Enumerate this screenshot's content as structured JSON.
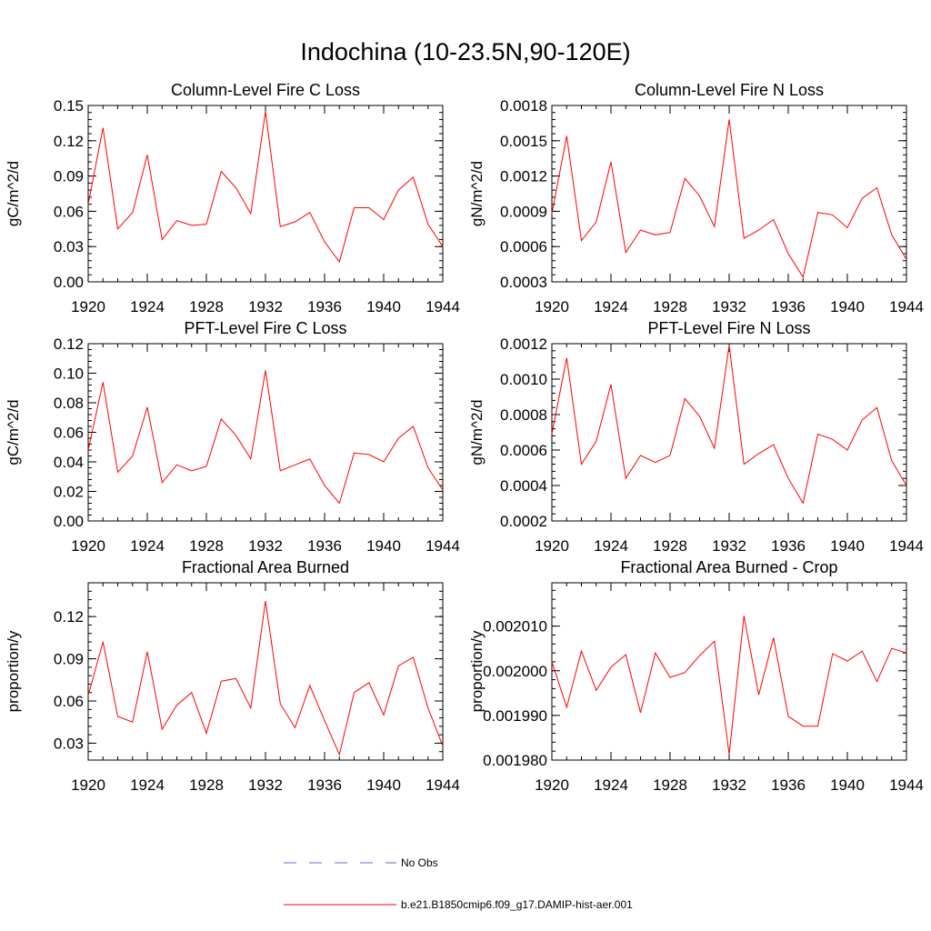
{
  "figure_title": "Indochina (10-23.5N,90-120E)",
  "legend": [
    {
      "label": "No Obs",
      "color": "#5a6fd0",
      "dashed": true
    },
    {
      "label": "b.e21.B1850cmip6.f09_g17.DAMIP-hist-aer.001",
      "color": "#ff0000",
      "dashed": false
    }
  ],
  "chart_data": [
    {
      "type": "line",
      "title": "Column-Level Fire C Loss",
      "ylabel": "gC/m^2/d",
      "xlim": [
        1920,
        1944
      ],
      "ylim": [
        0,
        0.15
      ],
      "xticks": [
        1920,
        1924,
        1928,
        1932,
        1936,
        1940,
        1944
      ],
      "xtick_labels": [
        "1920",
        "1924",
        "1928",
        "1932",
        "1936",
        "1940",
        "1944"
      ],
      "yticks": [
        0,
        0.03,
        0.06,
        0.09,
        0.12,
        0.15
      ],
      "ytick_labels": [
        "0.00",
        "0.03",
        "0.06",
        "0.09",
        "0.12",
        "0.15"
      ],
      "series": [
        {
          "color": "#ff0000",
          "x": [
            1920,
            1921,
            1922,
            1923,
            1924,
            1925,
            1926,
            1927,
            1928,
            1929,
            1930,
            1931,
            1932,
            1933,
            1934,
            1935,
            1936,
            1937,
            1938,
            1939,
            1940,
            1941,
            1942,
            1943,
            1944
          ],
          "values": [
            0.066,
            0.131,
            0.045,
            0.059,
            0.108,
            0.036,
            0.052,
            0.048,
            0.049,
            0.094,
            0.08,
            0.058,
            0.145,
            0.047,
            0.051,
            0.059,
            0.034,
            0.017,
            0.063,
            0.063,
            0.053,
            0.078,
            0.089,
            0.049,
            0.03
          ]
        }
      ]
    },
    {
      "type": "line",
      "title": "Column-Level Fire N Loss",
      "ylabel": "gN/m^2/d",
      "xlim": [
        1920,
        1944
      ],
      "ylim": [
        0.0003,
        0.0018
      ],
      "xticks": [
        1920,
        1924,
        1928,
        1932,
        1936,
        1940,
        1944
      ],
      "xtick_labels": [
        "1920",
        "1924",
        "1928",
        "1932",
        "1936",
        "1940",
        "1944"
      ],
      "yticks": [
        0.0003,
        0.0006,
        0.0009,
        0.0012,
        0.0015,
        0.0018
      ],
      "ytick_labels": [
        "0.0003",
        "0.0006",
        "0.0009",
        "0.0012",
        "0.0015",
        "0.0018"
      ],
      "series": [
        {
          "color": "#ff0000",
          "x": [
            1920,
            1921,
            1922,
            1923,
            1924,
            1925,
            1926,
            1927,
            1928,
            1929,
            1930,
            1931,
            1932,
            1933,
            1934,
            1935,
            1936,
            1937,
            1938,
            1939,
            1940,
            1941,
            1942,
            1943,
            1944
          ],
          "values": [
            0.00088,
            0.00154,
            0.00065,
            0.00081,
            0.00132,
            0.00055,
            0.00074,
            0.0007,
            0.00072,
            0.00118,
            0.00103,
            0.00077,
            0.00168,
            0.00067,
            0.00074,
            0.00083,
            0.00054,
            0.00034,
            0.00089,
            0.00087,
            0.00076,
            0.00101,
            0.0011,
            0.0007,
            0.00049
          ]
        }
      ]
    },
    {
      "type": "line",
      "title": "PFT-Level Fire C Loss",
      "ylabel": "gC/m^2/d",
      "xlim": [
        1920,
        1944
      ],
      "ylim": [
        0,
        0.12
      ],
      "xticks": [
        1920,
        1924,
        1928,
        1932,
        1936,
        1940,
        1944
      ],
      "xtick_labels": [
        "1920",
        "1924",
        "1928",
        "1932",
        "1936",
        "1940",
        "1944"
      ],
      "yticks": [
        0,
        0.02,
        0.04,
        0.06,
        0.08,
        0.1,
        0.12
      ],
      "ytick_labels": [
        "0.00",
        "0.02",
        "0.04",
        "0.06",
        "0.08",
        "0.10",
        "0.12"
      ],
      "series": [
        {
          "color": "#ff0000",
          "x": [
            1920,
            1921,
            1922,
            1923,
            1924,
            1925,
            1926,
            1927,
            1928,
            1929,
            1930,
            1931,
            1932,
            1933,
            1934,
            1935,
            1936,
            1937,
            1938,
            1939,
            1940,
            1941,
            1942,
            1943,
            1944
          ],
          "values": [
            0.048,
            0.094,
            0.033,
            0.044,
            0.077,
            0.026,
            0.038,
            0.034,
            0.037,
            0.069,
            0.058,
            0.042,
            0.102,
            0.034,
            0.038,
            0.042,
            0.024,
            0.012,
            0.046,
            0.045,
            0.04,
            0.056,
            0.064,
            0.036,
            0.021
          ]
        }
      ]
    },
    {
      "type": "line",
      "title": "PFT-Level Fire N Loss",
      "ylabel": "gN/m^2/d",
      "xlim": [
        1920,
        1944
      ],
      "ylim": [
        0.0002,
        0.0012
      ],
      "xticks": [
        1920,
        1924,
        1928,
        1932,
        1936,
        1940,
        1944
      ],
      "xtick_labels": [
        "1920",
        "1924",
        "1928",
        "1932",
        "1936",
        "1940",
        "1944"
      ],
      "yticks": [
        0.0002,
        0.0004,
        0.0006,
        0.0008,
        0.001,
        0.0012
      ],
      "ytick_labels": [
        "0.0002",
        "0.0004",
        "0.0006",
        "0.0008",
        "0.0010",
        "0.0012"
      ],
      "series": [
        {
          "color": "#ff0000",
          "x": [
            1920,
            1921,
            1922,
            1923,
            1924,
            1925,
            1926,
            1927,
            1928,
            1929,
            1930,
            1931,
            1932,
            1933,
            1934,
            1935,
            1936,
            1937,
            1938,
            1939,
            1940,
            1941,
            1942,
            1943,
            1944
          ],
          "values": [
            0.00069,
            0.00112,
            0.00052,
            0.00065,
            0.00097,
            0.00044,
            0.00057,
            0.00053,
            0.00057,
            0.00089,
            0.00079,
            0.00061,
            0.00119,
            0.00052,
            0.00058,
            0.00063,
            0.00044,
            0.0003,
            0.00069,
            0.00066,
            0.0006,
            0.00077,
            0.00084,
            0.00054,
            0.0004
          ]
        }
      ]
    },
    {
      "type": "line",
      "title": "Fractional Area Burned",
      "ylabel": "proportion/y",
      "xlim": [
        1920,
        1944
      ],
      "ylim": [
        0.018,
        0.144
      ],
      "xticks": [
        1920,
        1924,
        1928,
        1932,
        1936,
        1940,
        1944
      ],
      "xtick_labels": [
        "1920",
        "1924",
        "1928",
        "1932",
        "1936",
        "1940",
        "1944"
      ],
      "yticks": [
        0.03,
        0.06,
        0.09,
        0.12
      ],
      "ytick_labels": [
        "0.03",
        "0.06",
        "0.09",
        "0.12"
      ],
      "series": [
        {
          "color": "#ff0000",
          "x": [
            1920,
            1921,
            1922,
            1923,
            1924,
            1925,
            1926,
            1927,
            1928,
            1929,
            1930,
            1931,
            1932,
            1933,
            1934,
            1935,
            1936,
            1937,
            1938,
            1939,
            1940,
            1941,
            1942,
            1943,
            1944
          ],
          "values": [
            0.064,
            0.102,
            0.049,
            0.045,
            0.095,
            0.04,
            0.057,
            0.066,
            0.037,
            0.074,
            0.076,
            0.055,
            0.131,
            0.058,
            0.041,
            0.071,
            0.046,
            0.022,
            0.066,
            0.073,
            0.05,
            0.085,
            0.091,
            0.055,
            0.028
          ]
        }
      ]
    },
    {
      "type": "line",
      "title": "Fractional Area Burned - Crop",
      "ylabel": "proportion/y",
      "xlim": [
        1920,
        1944
      ],
      "ylim": [
        0.00198,
        0.0020197
      ],
      "xticks": [
        1920,
        1924,
        1928,
        1932,
        1936,
        1940,
        1944
      ],
      "xtick_labels": [
        "1920",
        "1924",
        "1928",
        "1932",
        "1936",
        "1940",
        "1944"
      ],
      "yticks": [
        0.00198,
        0.00199,
        0.002,
        0.00201
      ],
      "ytick_labels": [
        "0.001980",
        "0.001990",
        "0.002000",
        "0.002010"
      ],
      "series": [
        {
          "color": "#ff0000",
          "x": [
            1920,
            1921,
            1922,
            1923,
            1924,
            1925,
            1926,
            1927,
            1928,
            1929,
            1930,
            1931,
            1932,
            1933,
            1934,
            1935,
            1936,
            1937,
            1938,
            1939,
            1940,
            1941,
            1942,
            1943,
            1944
          ],
          "values": [
            0.002002,
            0.0019918,
            0.0020044,
            0.0019956,
            0.0020008,
            0.0020036,
            0.0019906,
            0.002004,
            0.0019985,
            0.0019996,
            0.0020034,
            0.0020066,
            0.0019813,
            0.0020123,
            0.0019946,
            0.0020074,
            0.0019898,
            0.0019876,
            0.0019876,
            0.0020038,
            0.0020022,
            0.0020044,
            0.0019976,
            0.002005,
            0.002004
          ]
        }
      ]
    }
  ]
}
